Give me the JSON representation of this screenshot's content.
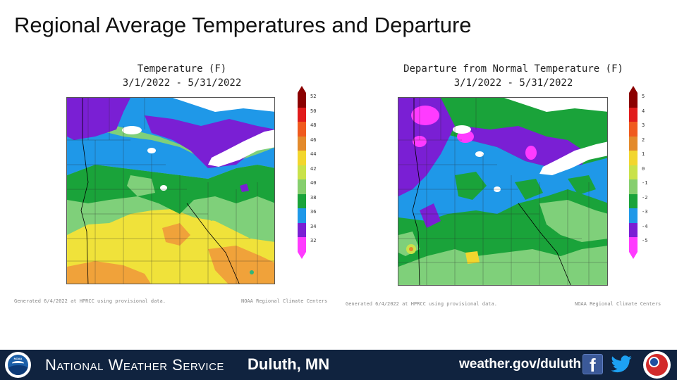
{
  "slide": {
    "title": "Regional Average Temperatures and Departure"
  },
  "maps": [
    {
      "title_line1": "Temperature (F)",
      "title_line2": "3/1/2022 - 5/31/2022",
      "legend_ticks": [
        "52",
        "50",
        "48",
        "46",
        "44",
        "42",
        "40",
        "38",
        "36",
        "34",
        "32"
      ],
      "legend_colors": [
        "#8b0000",
        "#e11b1b",
        "#f05a1e",
        "#e38a2b",
        "#f2d62e",
        "#c9e24a",
        "#86cf6e",
        "#1aa33a",
        "#1f98e8",
        "#7a1fd4",
        "#ff3bff"
      ],
      "generated_note": "Generated 6/4/2022 at HPRCC using provisional data.",
      "credit": "NOAA Regional Climate Centers"
    },
    {
      "title_line1": "Departure from Normal Temperature (F)",
      "title_line2": "3/1/2022 - 5/31/2022",
      "legend_ticks": [
        "5",
        "4",
        "3",
        "2",
        "1",
        "0",
        "-1",
        "-2",
        "-3",
        "-4",
        "-5"
      ],
      "legend_colors": [
        "#8b0000",
        "#e11b1b",
        "#f05a1e",
        "#e38a2b",
        "#f2d62e",
        "#c9e24a",
        "#86cf6e",
        "#1aa33a",
        "#1f98e8",
        "#7a1fd4",
        "#ff3bff"
      ],
      "generated_note": "Generated 6/4/2022 at HPRCC using provisional data.",
      "credit": "NOAA Regional Climate Centers"
    }
  ],
  "footer": {
    "agency": "National Weather Service",
    "office": "Duluth, MN",
    "website": "weather.gov/duluth",
    "noaa_logo_text": "NOAA",
    "icons": [
      "noaa-logo",
      "facebook-icon",
      "twitter-icon",
      "nws-logo"
    ]
  }
}
